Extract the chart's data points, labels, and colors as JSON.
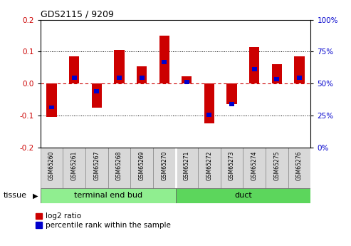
{
  "title": "GDS2115 / 9209",
  "samples": [
    "GSM65260",
    "GSM65261",
    "GSM65267",
    "GSM65268",
    "GSM65269",
    "GSM65270",
    "GSM65271",
    "GSM65272",
    "GSM65273",
    "GSM65274",
    "GSM65275",
    "GSM65276"
  ],
  "log2_ratio": [
    -0.105,
    0.085,
    -0.075,
    0.105,
    0.055,
    0.15,
    0.022,
    -0.125,
    -0.065,
    0.115,
    0.06,
    0.085
  ],
  "percentile_rank": [
    0.315,
    0.545,
    0.44,
    0.545,
    0.545,
    0.67,
    0.515,
    0.255,
    0.34,
    0.615,
    0.535,
    0.545
  ],
  "groups": [
    {
      "label": "terminal end bud",
      "start": 0,
      "end": 6,
      "color": "#90EE90"
    },
    {
      "label": "duct",
      "start": 6,
      "end": 12,
      "color": "#5CD65C"
    }
  ],
  "ylim": [
    -0.2,
    0.2
  ],
  "left_yticks": [
    -0.2,
    -0.1,
    0.0,
    0.1,
    0.2
  ],
  "right_ytick_labels": [
    "0%",
    "25%",
    "50%",
    "75%",
    "100%"
  ],
  "bar_color_red": "#CC0000",
  "bar_color_blue": "#0000CC",
  "dashed_line_color": "#CC0000",
  "dotted_line_color": "#000000",
  "bar_width": 0.45,
  "blue_bar_height": 0.013,
  "blue_bar_width": 0.22,
  "group_sep": 5.5,
  "n_samples": 12
}
